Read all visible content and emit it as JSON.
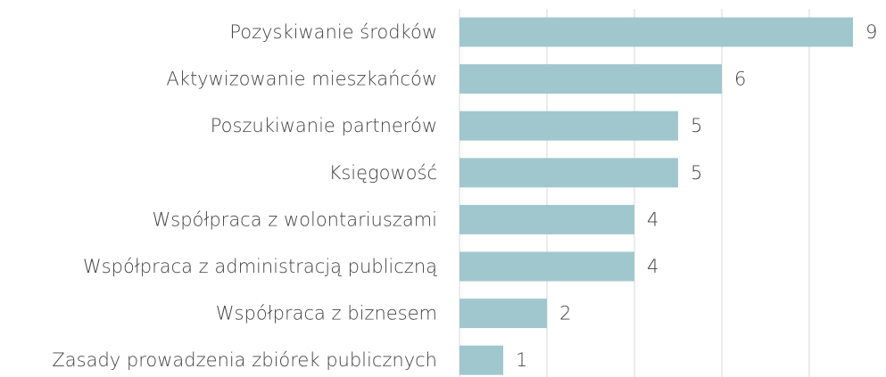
{
  "chart_data": {
    "type": "barh",
    "categories": [
      "Pozyskiwanie środków",
      "Aktywizowanie mieszkańców",
      "Poszukiwanie partnerów",
      "Księgowość",
      "Współpraca z wolontariuszami",
      "Współpraca z administracją publiczną",
      "Współpraca z biznesem",
      "Zasady prowadzenia zbiórek publicznych"
    ],
    "values": [
      9,
      6,
      5,
      5,
      4,
      4,
      2,
      1
    ],
    "color": "#a0c7cd",
    "xlim": [
      0,
      9
    ],
    "xticks": [
      0,
      2,
      4,
      6,
      8
    ],
    "grid": true,
    "show_tick_labels": false
  }
}
